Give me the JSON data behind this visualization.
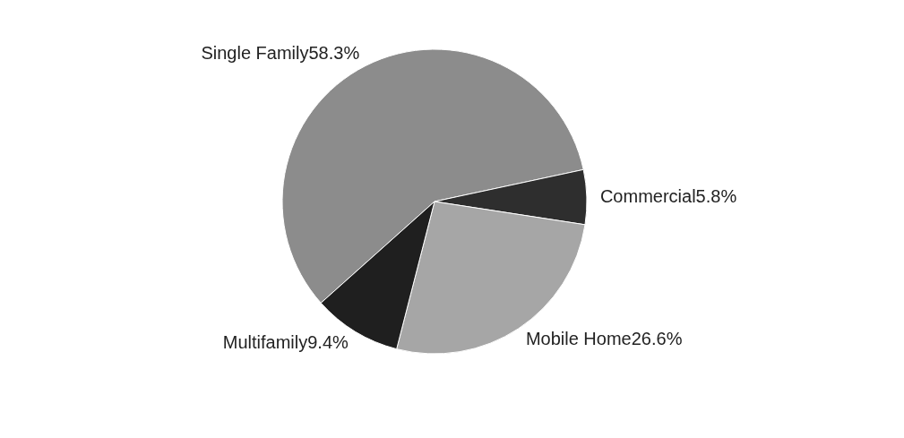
{
  "chart_data": {
    "type": "pie",
    "categories": [
      "Single Family",
      "Commercial",
      "Mobile Home",
      "Multifamily"
    ],
    "values": [
      58.3,
      5.8,
      26.6,
      9.4
    ],
    "colors": [
      "#8c8c8c",
      "#2e2e2e",
      "#a6a6a6",
      "#1f1f1f"
    ],
    "value_labels": [
      "58.3%",
      "5.8%",
      "26.6%",
      "9.4%"
    ],
    "legend": false
  }
}
